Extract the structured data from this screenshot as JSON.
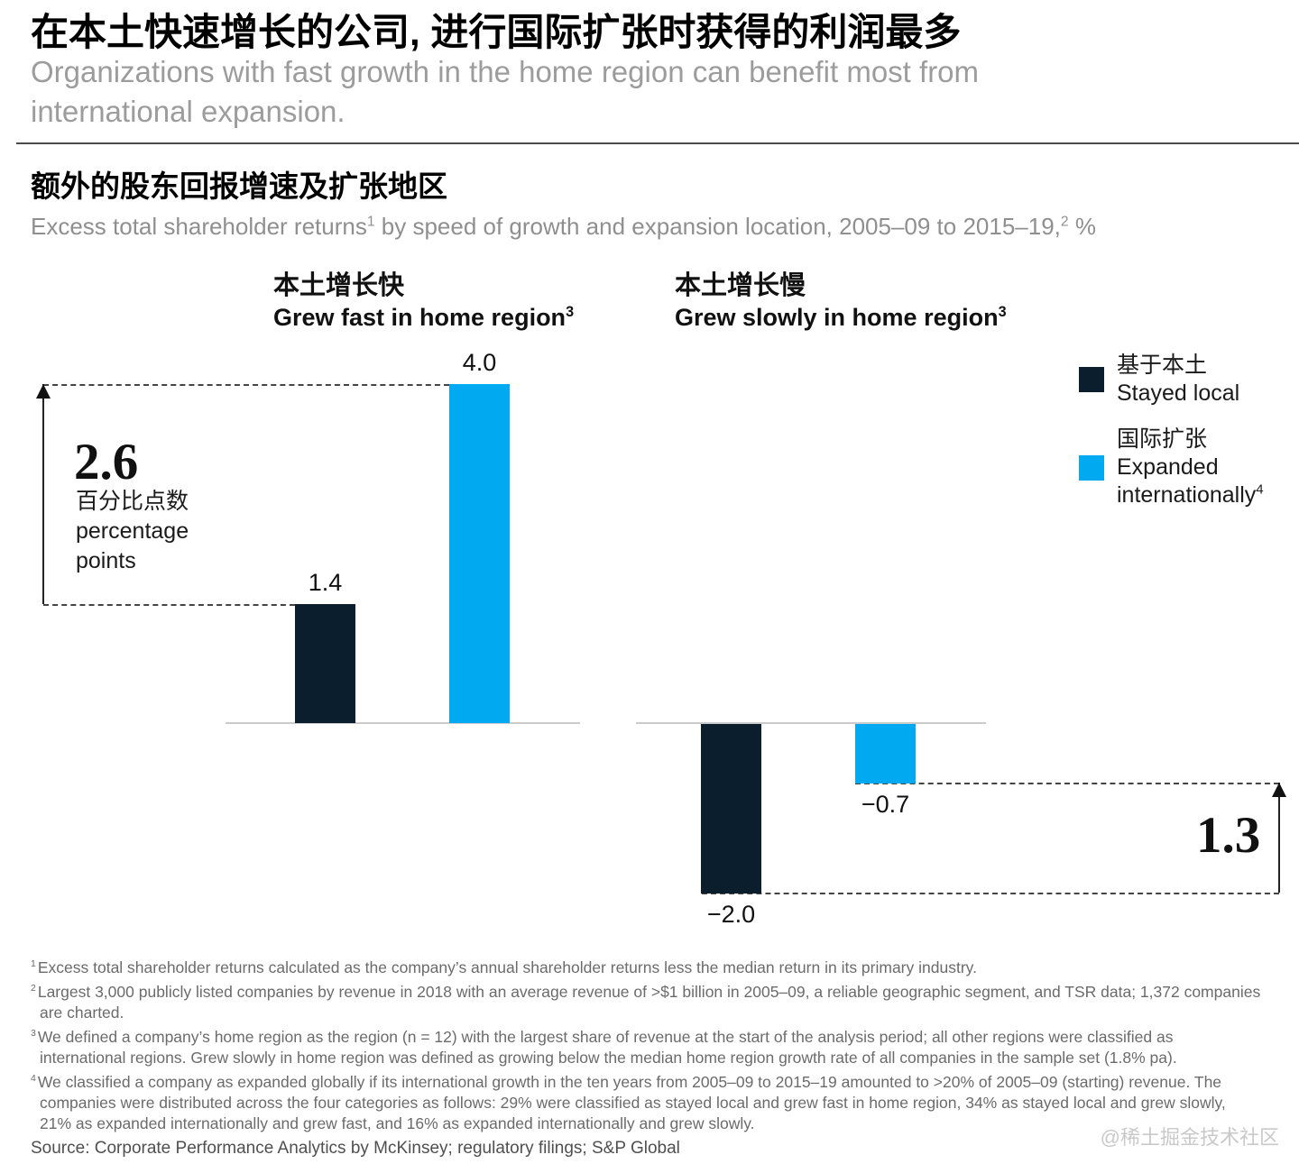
{
  "page": {
    "title_zh": "在本土快速增长的公司, 进行国际扩张时获得的利润最多",
    "subtitle_l1": "Organizations with fast growth in the home region can benefit most from",
    "subtitle_l2": "international expansion.",
    "watermark": "@稀土掘金技术社区"
  },
  "exhibit": {
    "heading_zh": "额外的股东回报增速及扩张地区",
    "sub": {
      "p1": "Excess total shareholder returns",
      "s1": "1",
      "p2": " by speed of growth and expansion location, 2005–09 to 2015–19,",
      "s2": "2",
      "p3": " %"
    }
  },
  "groups": [
    {
      "zh": "本土增长快",
      "en": "Grew fast in home region",
      "sup": "3"
    },
    {
      "zh": "本土增长慢",
      "en": "Grew slowly in home region",
      "sup": "3"
    }
  ],
  "legend": {
    "items": [
      {
        "zh": "基于本土",
        "en_l1": "Stayed local",
        "en_l2": "",
        "sup": "",
        "color": "#0a1e2d"
      },
      {
        "zh": "国际扩张",
        "en_l1": "Expanded",
        "en_l2": "internationally",
        "sup": "4",
        "color": "#00a9f0"
      }
    ]
  },
  "chart_data": {
    "type": "bar",
    "title": "额外的股东回报增速及扩张地区 — Excess total shareholder returns by speed of growth and expansion location, 2005–09 to 2015–19, %",
    "categories": [
      "本土增长快 Grew fast in home region",
      "本土增长慢 Grew slowly in home region"
    ],
    "series": [
      {
        "name": "Stayed local",
        "name_zh": "基于本土",
        "color": "#0a1e2d",
        "values": [
          1.4,
          -2.0
        ],
        "value_labels": [
          "1.4",
          "−2.0"
        ]
      },
      {
        "name": "Expanded internationally",
        "name_zh": "国际扩张",
        "color": "#00a9f0",
        "values": [
          4.0,
          -0.7
        ],
        "value_labels": [
          "4.0",
          "−0.7"
        ]
      }
    ],
    "unit": "percentage points (%)",
    "ylim": [
      -2.0,
      4.0
    ],
    "grid": false,
    "legend_position": "right",
    "annotations": [
      {
        "label": "2.6",
        "desc_zh": "百分比点数",
        "desc_en_l1": "percentage",
        "desc_en_l2": "points",
        "from": 1.4,
        "to": 4.0,
        "side": "left"
      },
      {
        "label": "1.3",
        "from": -2.0,
        "to": -0.7,
        "side": "right"
      }
    ]
  },
  "footnotes": [
    {
      "sup": "1",
      "text": "Excess total shareholder returns calculated as the company’s annual shareholder returns less the median return in its primary industry."
    },
    {
      "sup": "2",
      "text": "Largest 3,000 publicly listed companies by revenue in 2018 with an average revenue of >$1 billion in 2005–09, a reliable geographic segment, and TSR data; 1,372 companies are charted."
    },
    {
      "sup": "3",
      "text": "We defined a company’s home region as the region (n = 12) with the largest share of revenue at the start of the analysis period; all other regions were classified as international regions. Grew slowly in home region was defined as growing below the median home region growth rate of all companies in the sample set (1.8% pa)."
    },
    {
      "sup": "4",
      "text": "We classified a company as expanded globally if its international growth in the ten years from 2005–09 to 2015–19 amounted to >20% of 2005–09 (starting) revenue. The companies were distributed across the four categories as follows: 29% were classified as stayed local and grew fast in home region, 34% as stayed local and grew slowly, 21% as expanded internationally and grew fast, and 16% as expanded internationally and grew slowly."
    }
  ],
  "source": {
    "text": "Source: Corporate Performance Analytics by McKinsey; regulatory filings; S&P Global"
  }
}
